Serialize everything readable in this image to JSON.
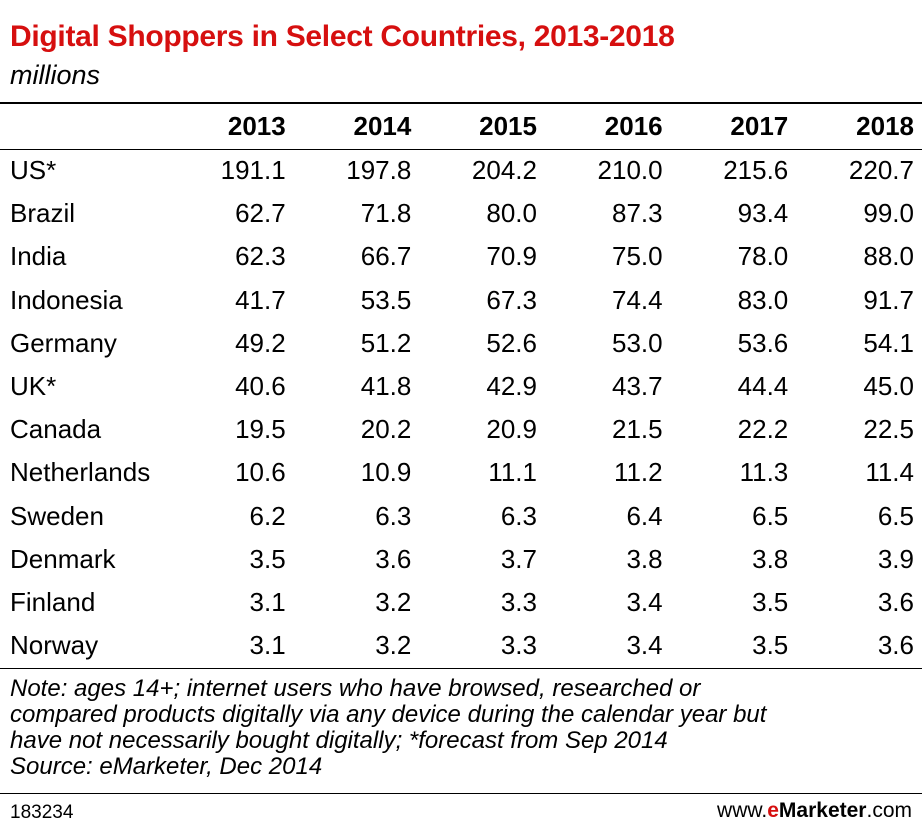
{
  "chart_data": {
    "type": "table",
    "title": "Digital Shoppers in Select Countries, 2013-2018",
    "subtitle": "millions",
    "columns": [
      "2013",
      "2014",
      "2015",
      "2016",
      "2017",
      "2018"
    ],
    "rows": [
      {
        "label": "US*",
        "values": [
          "191.1",
          "197.8",
          "204.2",
          "210.0",
          "215.6",
          "220.7"
        ]
      },
      {
        "label": "Brazil",
        "values": [
          "62.7",
          "71.8",
          "80.0",
          "87.3",
          "93.4",
          "99.0"
        ]
      },
      {
        "label": "India",
        "values": [
          "62.3",
          "66.7",
          "70.9",
          "75.0",
          "78.0",
          "88.0"
        ]
      },
      {
        "label": "Indonesia",
        "values": [
          "41.7",
          "53.5",
          "67.3",
          "74.4",
          "83.0",
          "91.7"
        ]
      },
      {
        "label": "Germany",
        "values": [
          "49.2",
          "51.2",
          "52.6",
          "53.0",
          "53.6",
          "54.1"
        ]
      },
      {
        "label": "UK*",
        "values": [
          "40.6",
          "41.8",
          "42.9",
          "43.7",
          "44.4",
          "45.0"
        ]
      },
      {
        "label": "Canada",
        "values": [
          "19.5",
          "20.2",
          "20.9",
          "21.5",
          "22.2",
          "22.5"
        ]
      },
      {
        "label": "Netherlands",
        "values": [
          "10.6",
          "10.9",
          "11.1",
          "11.2",
          "11.3",
          "11.4"
        ]
      },
      {
        "label": "Sweden",
        "values": [
          "6.2",
          "6.3",
          "6.3",
          "6.4",
          "6.5",
          "6.5"
        ]
      },
      {
        "label": "Denmark",
        "values": [
          "3.5",
          "3.6",
          "3.7",
          "3.8",
          "3.8",
          "3.9"
        ]
      },
      {
        "label": "Finland",
        "values": [
          "3.1",
          "3.2",
          "3.3",
          "3.4",
          "3.5",
          "3.6"
        ]
      },
      {
        "label": "Norway",
        "values": [
          "3.1",
          "3.2",
          "3.3",
          "3.4",
          "3.5",
          "3.6"
        ]
      }
    ]
  },
  "note_lines": [
    "Note: ages 14+; internet users who have browsed, researched or",
    "compared products digitally via any device during the calendar year but",
    "have not necessarily bought digitally; *forecast from Sep 2014",
    "Source: eMarketer, Dec 2014"
  ],
  "footer": {
    "chart_id": "183234",
    "brand_prefix": "www.",
    "brand_e": "e",
    "brand_name": "Marketer",
    "brand_suffix": ".com"
  },
  "colors": {
    "title": "#d60f0f",
    "brand_accent": "#d60f0f"
  }
}
